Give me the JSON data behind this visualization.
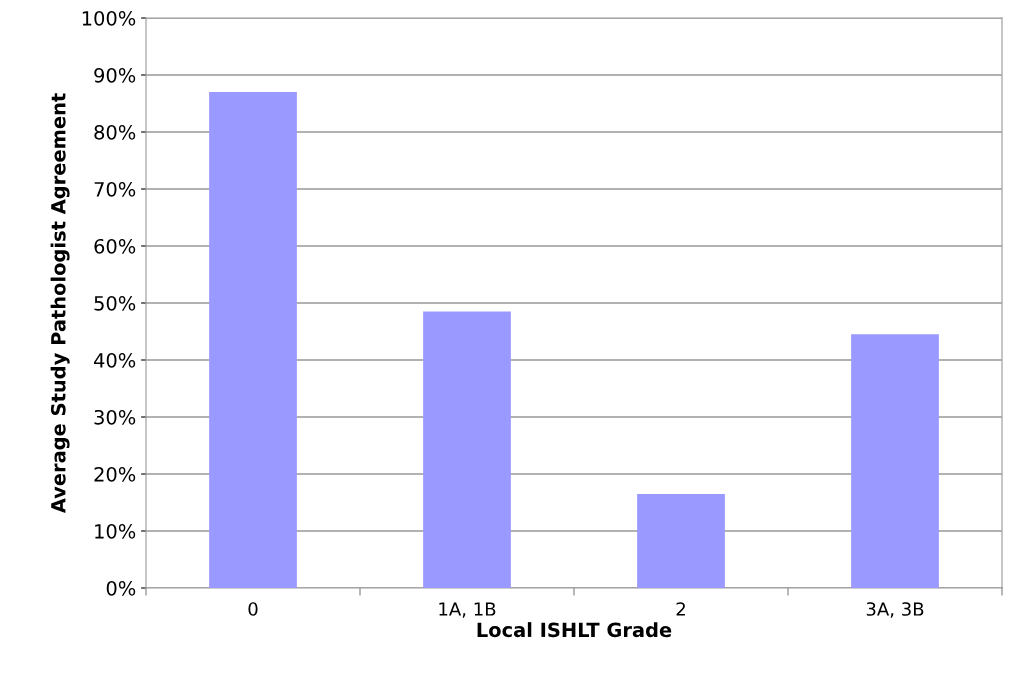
{
  "chart_data": {
    "type": "bar",
    "xlabel": "Local ISHLT Grade",
    "ylabel": "Average Study Pathologist Agreement",
    "categories": [
      "0",
      "1A, 1B",
      "2",
      "3A, 3B"
    ],
    "values": [
      87,
      48.5,
      16.5,
      44.5
    ],
    "color": "#9999ff",
    "ylim": [
      0,
      100
    ],
    "yticks": [
      {
        "value": 0,
        "label": "0%"
      },
      {
        "value": 10,
        "label": "10%"
      },
      {
        "value": 20,
        "label": "20%"
      },
      {
        "value": 30,
        "label": "30%"
      },
      {
        "value": 40,
        "label": "40%"
      },
      {
        "value": 50,
        "label": "50%"
      },
      {
        "value": 60,
        "label": "60%"
      },
      {
        "value": 70,
        "label": "70%"
      },
      {
        "value": 80,
        "label": "80%"
      },
      {
        "value": 90,
        "label": "90%"
      },
      {
        "value": 100,
        "label": "100%"
      }
    ],
    "grid": "y"
  }
}
